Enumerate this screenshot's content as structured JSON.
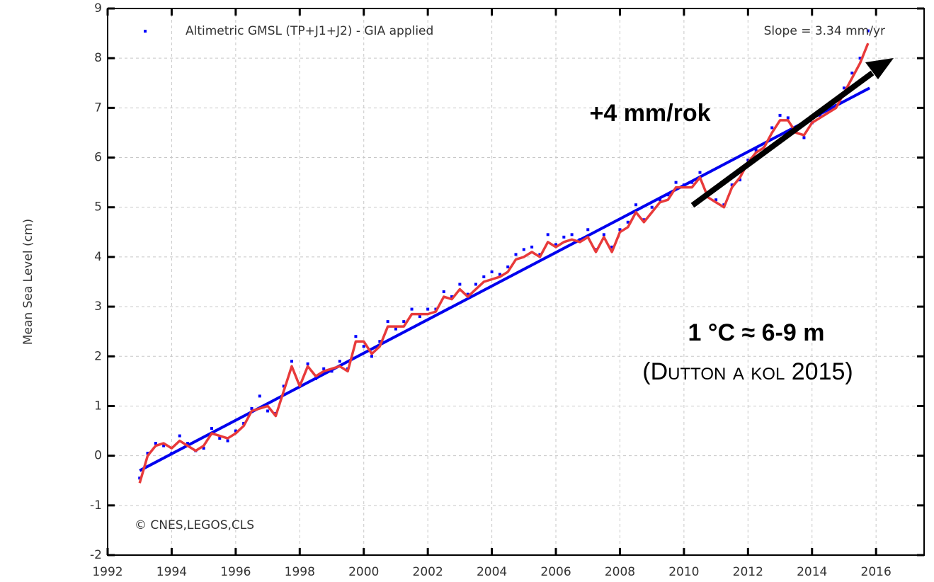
{
  "chart_data": {
    "type": "scatter",
    "y_label": "Mean Sea Level (cm)",
    "xlim": [
      1992,
      2017.5
    ],
    "ylim": [
      -2,
      9
    ],
    "xticks": [
      1992,
      1994,
      1996,
      1998,
      2000,
      2002,
      2004,
      2006,
      2008,
      2010,
      2012,
      2014,
      2016
    ],
    "yticks": [
      -2,
      -1,
      0,
      1,
      2,
      3,
      4,
      5,
      6,
      7,
      8,
      9
    ],
    "grid": true,
    "x": [
      1993,
      1993.25,
      1993.5,
      1993.75,
      1994,
      1994.25,
      1994.5,
      1994.75,
      1995,
      1995.25,
      1995.5,
      1995.75,
      1996,
      1996.25,
      1996.5,
      1996.75,
      1997,
      1997.25,
      1997.5,
      1997.75,
      1998,
      1998.25,
      1998.5,
      1998.75,
      1999,
      1999.25,
      1999.5,
      1999.75,
      2000,
      2000.25,
      2000.5,
      2000.75,
      2001,
      2001.25,
      2001.5,
      2001.75,
      2002,
      2002.25,
      2002.5,
      2002.75,
      2003,
      2003.25,
      2003.5,
      2003.75,
      2004,
      2004.25,
      2004.5,
      2004.75,
      2005,
      2005.25,
      2005.5,
      2005.75,
      2006,
      2006.25,
      2006.5,
      2006.75,
      2007,
      2007.25,
      2007.5,
      2007.75,
      2008,
      2008.25,
      2008.5,
      2008.75,
      2009,
      2009.25,
      2009.5,
      2009.75,
      2010,
      2010.25,
      2010.5,
      2010.75,
      2011,
      2011.25,
      2011.5,
      2011.75,
      2012,
      2012.25,
      2012.5,
      2012.75,
      2013,
      2013.25,
      2013.5,
      2013.75,
      2014,
      2014.25,
      2014.5,
      2014.75,
      2015,
      2015.25,
      2015.5,
      2015.75
    ],
    "series": [
      {
        "name": "Altimetric GMSL (TP+J1+J2) - GIA applied",
        "color": "#0000ff",
        "style": "dots",
        "values": [
          -0.45,
          0.05,
          0.25,
          0.2,
          0.05,
          0.4,
          0.25,
          0.1,
          0.15,
          0.55,
          0.35,
          0.3,
          0.5,
          0.65,
          0.95,
          1.2,
          0.9,
          0.85,
          1.4,
          1.9,
          1.45,
          1.85,
          1.55,
          1.75,
          1.7,
          1.9,
          1.75,
          2.4,
          2.2,
          2.0,
          2.3,
          2.7,
          2.55,
          2.7,
          2.95,
          2.8,
          2.95,
          2.95,
          3.3,
          3.2,
          3.45,
          3.25,
          3.45,
          3.6,
          3.7,
          3.65,
          3.8,
          4.05,
          4.15,
          4.2,
          4.05,
          4.45,
          4.25,
          4.4,
          4.45,
          4.35,
          4.55,
          4.15,
          4.45,
          4.2,
          4.55,
          4.7,
          5.05,
          4.75,
          5.0,
          5.15,
          5.25,
          5.5,
          5.45,
          5.5,
          5.7,
          5.25,
          5.15,
          5.05,
          5.45,
          5.55,
          5.95,
          6.15,
          6.2,
          6.6,
          6.85,
          6.8,
          6.55,
          6.4,
          6.7,
          6.85,
          7.0,
          7.05,
          7.4,
          7.7,
          8.0,
          8.55
        ]
      },
      {
        "color": "#e83a3a",
        "style": "line",
        "values": [
          -0.55,
          0.0,
          0.2,
          0.25,
          0.15,
          0.3,
          0.2,
          0.1,
          0.2,
          0.45,
          0.4,
          0.35,
          0.45,
          0.6,
          0.9,
          0.95,
          1.0,
          0.8,
          1.3,
          1.8,
          1.4,
          1.8,
          1.6,
          1.7,
          1.75,
          1.8,
          1.7,
          2.3,
          2.3,
          2.05,
          2.2,
          2.6,
          2.6,
          2.6,
          2.85,
          2.85,
          2.85,
          2.9,
          3.2,
          3.15,
          3.35,
          3.2,
          3.35,
          3.5,
          3.55,
          3.6,
          3.7,
          3.95,
          4.0,
          4.1,
          4.0,
          4.3,
          4.2,
          4.3,
          4.35,
          4.3,
          4.4,
          4.1,
          4.4,
          4.1,
          4.5,
          4.6,
          4.9,
          4.7,
          4.9,
          5.1,
          5.15,
          5.4,
          5.4,
          5.4,
          5.6,
          5.2,
          5.1,
          5.0,
          5.4,
          5.6,
          5.9,
          6.1,
          6.2,
          6.5,
          6.75,
          6.75,
          6.5,
          6.45,
          6.7,
          6.8,
          6.9,
          7.0,
          7.3,
          7.6,
          7.9,
          8.3
        ]
      }
    ],
    "trend": {
      "x": [
        1993,
        2015.8
      ],
      "values": [
        -0.3,
        7.4
      ],
      "color": "#0000ee",
      "label": "Slope = 3.34 mm/yr"
    },
    "annotations": [
      "+4 mm/rok",
      "1 °C ≈ 6-9 m",
      "(Dutton a kol 2015)",
      "© CNES,LEGOS,CLS"
    ]
  }
}
